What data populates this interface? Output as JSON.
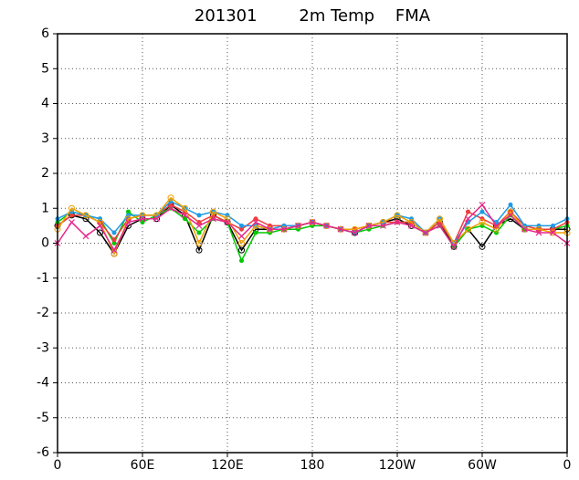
{
  "chart_data": {
    "type": "line",
    "title": "201301        2m Temp    FMA",
    "x": [
      0,
      10,
      20,
      30,
      40,
      50,
      60,
      70,
      80,
      90,
      100,
      110,
      120,
      130,
      140,
      150,
      160,
      170,
      180,
      190,
      200,
      210,
      220,
      230,
      240,
      250,
      260,
      270,
      280,
      290,
      300,
      310,
      320,
      330,
      340,
      350,
      360
    ],
    "xlim": [
      0,
      360
    ],
    "xticks": [
      0,
      {
        "value": 60,
        "label": "60E"
      },
      {
        "value": 120,
        "label": "120E"
      },
      180,
      {
        "value": 240,
        "label": "120W"
      },
      {
        "value": 300,
        "label": "60W"
      },
      {
        "value": 360,
        "label": "0"
      }
    ],
    "ylim": [
      -6,
      6
    ],
    "yticks": [
      -6,
      -5,
      -4,
      -3,
      -2,
      -1,
      0,
      1,
      2,
      3,
      4,
      5,
      6
    ],
    "grid": true,
    "series": [
      {
        "color": "#000000",
        "marker": "open-circle",
        "values": [
          0.5,
          0.8,
          0.7,
          0.3,
          -0.3,
          0.5,
          0.7,
          0.7,
          1.1,
          0.8,
          -0.2,
          0.8,
          0.6,
          -0.2,
          0.4,
          0.4,
          0.4,
          0.5,
          0.6,
          0.5,
          0.4,
          0.3,
          0.5,
          0.6,
          0.7,
          0.5,
          0.3,
          0.6,
          -0.1,
          0.4,
          -0.1,
          0.5,
          0.7,
          0.4,
          0.4,
          0.4,
          0.4
        ]
      },
      {
        "color": "#00c800",
        "marker": "dot",
        "values": [
          0.6,
          0.9,
          0.8,
          0.7,
          0.0,
          0.9,
          0.6,
          0.8,
          1.0,
          0.7,
          0.3,
          0.7,
          0.6,
          -0.5,
          0.3,
          0.3,
          0.4,
          0.4,
          0.5,
          0.5,
          0.4,
          0.3,
          0.4,
          0.5,
          0.6,
          0.6,
          0.3,
          0.5,
          -0.1,
          0.4,
          0.5,
          0.3,
          0.8,
          0.4,
          0.4,
          0.4,
          0.5
        ]
      },
      {
        "color": "#f03c3c",
        "marker": "dot",
        "values": [
          0.5,
          0.8,
          0.8,
          0.6,
          0.1,
          0.7,
          0.8,
          0.8,
          1.1,
          0.9,
          0.6,
          0.8,
          0.6,
          0.4,
          0.7,
          0.5,
          0.5,
          0.5,
          0.6,
          0.5,
          0.4,
          0.4,
          0.5,
          0.6,
          0.6,
          0.6,
          0.3,
          0.6,
          0.0,
          0.9,
          0.7,
          0.5,
          0.9,
          0.5,
          0.4,
          0.4,
          0.6
        ]
      },
      {
        "color": "#1e9be6",
        "marker": "dot",
        "values": [
          0.7,
          0.9,
          0.8,
          0.7,
          0.3,
          0.8,
          0.8,
          0.8,
          1.2,
          1.0,
          0.8,
          0.9,
          0.8,
          0.5,
          0.5,
          0.4,
          0.5,
          0.5,
          0.6,
          0.5,
          0.4,
          0.3,
          0.5,
          0.6,
          0.8,
          0.7,
          0.3,
          0.7,
          0.0,
          0.6,
          0.9,
          0.6,
          1.1,
          0.5,
          0.5,
          0.5,
          0.7
        ]
      },
      {
        "color": "#f0a000",
        "marker": "open-circle",
        "values": [
          0.4,
          1.0,
          0.8,
          0.6,
          -0.3,
          0.7,
          0.8,
          0.8,
          1.3,
          1.0,
          0.0,
          0.9,
          0.7,
          0.0,
          0.5,
          0.4,
          0.4,
          0.5,
          0.6,
          0.5,
          0.4,
          0.4,
          0.5,
          0.6,
          0.8,
          0.6,
          0.3,
          0.7,
          0.0,
          0.4,
          0.6,
          0.4,
          0.9,
          0.4,
          0.4,
          0.3,
          0.3
        ]
      },
      {
        "color": "#e6288c",
        "marker": "cross",
        "values": [
          0.0,
          0.6,
          0.2,
          0.5,
          -0.2,
          0.6,
          0.7,
          0.7,
          1.0,
          0.8,
          0.5,
          0.7,
          0.6,
          0.2,
          0.6,
          0.4,
          0.4,
          0.5,
          0.6,
          0.5,
          0.4,
          0.3,
          0.5,
          0.5,
          0.6,
          0.5,
          0.3,
          0.5,
          -0.1,
          0.7,
          1.1,
          0.5,
          0.8,
          0.4,
          0.3,
          0.3,
          0.0
        ]
      }
    ]
  }
}
